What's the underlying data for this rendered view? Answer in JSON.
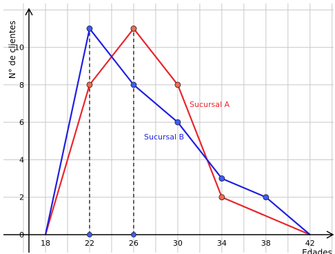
{
  "chart_data": {
    "type": "line",
    "xlabel": "Edades",
    "ylabel": "N° de clientes",
    "x_ticks": [
      18,
      22,
      26,
      30,
      34,
      38,
      42
    ],
    "y_ticks": [
      0,
      2,
      4,
      6,
      8,
      10
    ],
    "y_tick_labels": [
      "0",
      "2",
      "4",
      "6",
      "8",
      "10"
    ],
    "xlim": [
      14,
      44
    ],
    "ylim": [
      0,
      11.5
    ],
    "grid": true,
    "series": [
      {
        "name": "Sucursal A",
        "color": "#e8262b",
        "marker_color": "#f0694f",
        "x": [
          18,
          22,
          26,
          30,
          34,
          38,
          42
        ],
        "y": [
          0,
          8,
          11,
          8,
          2,
          1,
          0
        ],
        "markers_at_x": [
          22,
          26,
          30,
          34
        ]
      },
      {
        "name": "Sucursal B",
        "color": "#1f1fe0",
        "marker_color": "#3c5bff",
        "x": [
          18,
          22,
          26,
          30,
          34,
          38,
          42
        ],
        "y": [
          0,
          11,
          8,
          6,
          3,
          2,
          0
        ],
        "markers_at_x": [
          22,
          26,
          30,
          34,
          38
        ]
      }
    ],
    "reference_lines_x": [
      22,
      26
    ],
    "axis_markers_x": [
      22,
      26
    ],
    "series_label_positions": [
      "right of peak",
      "middle"
    ]
  }
}
